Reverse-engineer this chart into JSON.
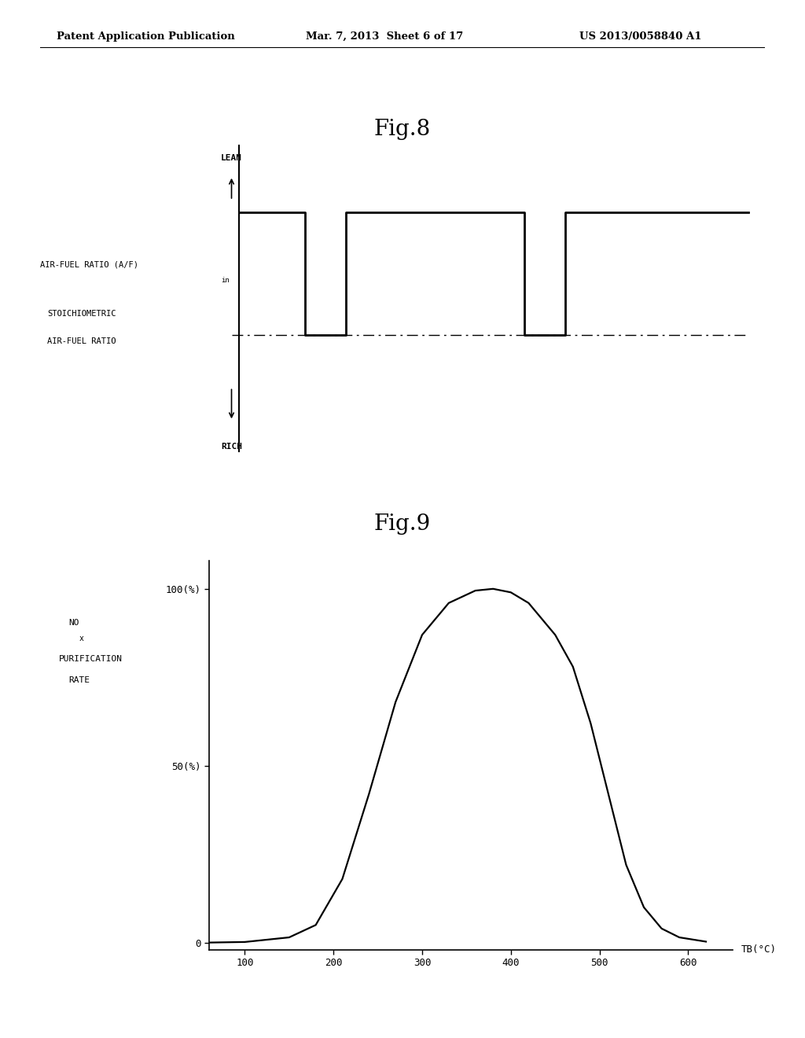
{
  "header_left": "Patent Application Publication",
  "header_center": "Mar. 7, 2013  Sheet 6 of 17",
  "header_right": "US 2013/0058840 A1",
  "fig8_title": "Fig.8",
  "fig9_title": "Fig.9",
  "background_color": "#ffffff",
  "text_color": "#000000",
  "fig8": {
    "lean_label": "LEAN",
    "rich_label": "RICH",
    "afr_label": "AIR-FUEL RATIO (A/F)",
    "afr_subscript": "in",
    "stoich_label1": "STOICHIOMETRIC",
    "stoich_label2": "AIR-FUEL RATIO",
    "lean_y": 0.78,
    "stoich_y": 0.38,
    "rich_y": 0.08,
    "signal_x": [
      0.0,
      0.13,
      0.13,
      0.21,
      0.21,
      0.56,
      0.56,
      0.64,
      0.64,
      1.0
    ],
    "signal_y": [
      0.78,
      0.78,
      0.38,
      0.38,
      0.78,
      0.78,
      0.38,
      0.38,
      0.78,
      0.78
    ]
  },
  "fig9": {
    "xlabel": "TB(°C)",
    "ylabel_line1": "NO",
    "ylabel_subscript": "x",
    "ylabel_line3": "PURIFICATION",
    "ylabel_line4": "RATE",
    "xtick_vals": [
      100,
      200,
      300,
      400,
      500,
      600
    ],
    "xtick_labels": [
      "100",
      "200",
      "300",
      "400",
      "500",
      "600"
    ],
    "ytick_vals": [
      0,
      50,
      100
    ],
    "ytick_labels": [
      "0",
      "50(%)",
      "100(%)"
    ],
    "curve_x": [
      50,
      100,
      150,
      180,
      210,
      240,
      270,
      300,
      330,
      360,
      380,
      400,
      420,
      450,
      470,
      490,
      510,
      530,
      550,
      570,
      590,
      620
    ],
    "curve_y": [
      0,
      0.2,
      1.5,
      5,
      18,
      42,
      68,
      87,
      96,
      99.5,
      100,
      99,
      96,
      87,
      78,
      62,
      42,
      22,
      10,
      4,
      1.5,
      0.3
    ]
  }
}
